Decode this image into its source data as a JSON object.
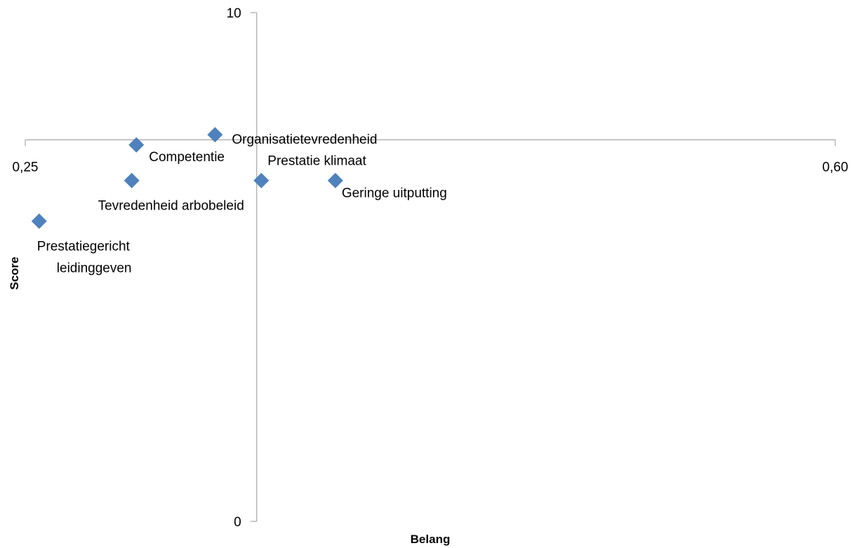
{
  "chart_data": {
    "type": "scatter",
    "xlabel": "Belang",
    "ylabel": "Score",
    "xlim": [
      0.25,
      0.6
    ],
    "ylim": [
      0,
      10
    ],
    "x_ticks": [
      "0,25",
      "0,60"
    ],
    "y_ticks": [
      "0",
      "10"
    ],
    "y_cross": 7.5,
    "x_cross": 0.35,
    "grid": false,
    "legend": "none",
    "marker": "diamond",
    "marker_color": "#4f81bd",
    "points": [
      {
        "label": "Organisatietevredenheid",
        "x": 0.332,
        "y": 7.6
      },
      {
        "label": "Competentie",
        "x": 0.298,
        "y": 7.4
      },
      {
        "label": "Prestatie klimaat",
        "x": 0.352,
        "y": 6.7
      },
      {
        "label": "Geringe uitputting",
        "x": 0.384,
        "y": 6.7
      },
      {
        "label": "Tevredenheid arbobeleid",
        "x": 0.296,
        "y": 6.7
      },
      {
        "label": "Prestatiegericht leidinggeven",
        "x": 0.256,
        "y": 5.9
      }
    ]
  }
}
